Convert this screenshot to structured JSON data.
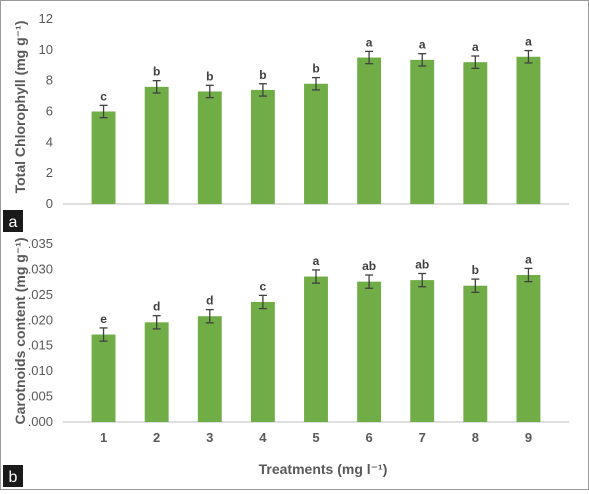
{
  "colors": {
    "bar": "#70ad47",
    "error": "#404040",
    "badge": "#1a1a1a"
  },
  "chart_data": [
    {
      "type": "bar",
      "panel": "a",
      "ylabel": "Total Chlorophyll  (mg g⁻¹)",
      "ylim": [
        0,
        12
      ],
      "yticks": [
        "0",
        "2",
        "4",
        "6",
        "8",
        "10",
        "12"
      ],
      "categories": [
        "1",
        "2",
        "3",
        "4",
        "5",
        "6",
        "7",
        "8",
        "9"
      ],
      "values": [
        6.0,
        7.6,
        7.3,
        7.4,
        7.8,
        9.5,
        9.35,
        9.2,
        9.55
      ],
      "errors": [
        0.4,
        0.4,
        0.4,
        0.4,
        0.4,
        0.4,
        0.4,
        0.4,
        0.4
      ],
      "letters": [
        "c",
        "b",
        "b",
        "b",
        "b",
        "a",
        "a",
        "a",
        "a"
      ]
    },
    {
      "type": "bar",
      "panel": "b",
      "ylabel": "Carotnoids content (mg g⁻¹)",
      "xlabel": "Treatments (mg l⁻¹)",
      "ylim": [
        0,
        0.035
      ],
      "yticks": [
        ".000",
        ".005",
        ".010",
        ".015",
        ".020",
        ".025",
        ".030",
        ".035"
      ],
      "categories": [
        "1",
        "2",
        "3",
        "4",
        "5",
        "6",
        "7",
        "8",
        "9"
      ],
      "values": [
        0.0172,
        0.0196,
        0.0208,
        0.0236,
        0.0286,
        0.0276,
        0.0279,
        0.0268,
        0.0289
      ],
      "errors": [
        0.0013,
        0.0013,
        0.0013,
        0.0013,
        0.0013,
        0.0013,
        0.0013,
        0.0013,
        0.0013
      ],
      "letters": [
        "e",
        "d",
        "d",
        "c",
        "a",
        "ab",
        "ab",
        "b",
        "a"
      ]
    }
  ]
}
